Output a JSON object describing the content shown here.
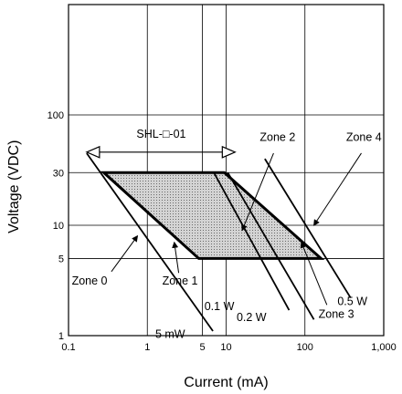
{
  "chart_data": {
    "type": "line",
    "title": "",
    "xlabel": "Current (mA)",
    "ylabel": "Voltage (VDC)",
    "x_scale": "log",
    "y_scale": "log",
    "xlim": [
      0.1,
      1000
    ],
    "ylim": [
      1,
      1000
    ],
    "grid": true,
    "x_ticks": [
      {
        "value": 0.1,
        "label": "0.1"
      },
      {
        "value": 1,
        "label": "1"
      },
      {
        "value": 5,
        "label": "5"
      },
      {
        "value": 10,
        "label": "10"
      },
      {
        "value": 100,
        "label": "100"
      },
      {
        "value": 1000,
        "label": "1,000"
      }
    ],
    "y_ticks": [
      {
        "value": 1,
        "label": "1"
      },
      {
        "value": 5,
        "label": "5"
      },
      {
        "value": 10,
        "label": "10"
      },
      {
        "value": 30,
        "label": "30"
      },
      {
        "value": 100,
        "label": "100"
      }
    ],
    "operating_region": {
      "label": "SHL-□-01",
      "vertices": [
        [
          0.28,
          30
        ],
        [
          9.5,
          30
        ],
        [
          160,
          5
        ],
        [
          4.5,
          5
        ]
      ]
    },
    "power_lines": [
      {
        "label": "5 mW",
        "points": [
          [
            0.17,
            45
          ],
          [
            6.8,
            1.1
          ]
        ]
      },
      {
        "label": "0.1 W",
        "points": [
          [
            7,
            30
          ],
          [
            63,
            1.7
          ]
        ]
      },
      {
        "label": "0.2 W",
        "points": [
          [
            10.5,
            30
          ],
          [
            130,
            1.4
          ]
        ]
      },
      {
        "label": "0.5 W",
        "points": [
          [
            31,
            40
          ],
          [
            380,
            2.2
          ]
        ]
      }
    ],
    "zones": [
      {
        "label": "Zone 0",
        "at": [
          0.2,
          2.9
        ],
        "arrow_to": [
          0.75,
          8
        ]
      },
      {
        "label": "Zone 1",
        "at": [
          2.6,
          2.9
        ],
        "arrow_to": [
          2.2,
          7
        ]
      },
      {
        "label": "Zone 2",
        "at": [
          45,
          58
        ],
        "arrow_to": [
          16,
          9
        ]
      },
      {
        "label": "Zone 3",
        "at": [
          200,
          1.6
        ],
        "arrow_to": [
          90,
          7
        ]
      },
      {
        "label": "Zone 4",
        "at": [
          560,
          58
        ],
        "arrow_to": [
          130,
          10
        ]
      }
    ]
  }
}
